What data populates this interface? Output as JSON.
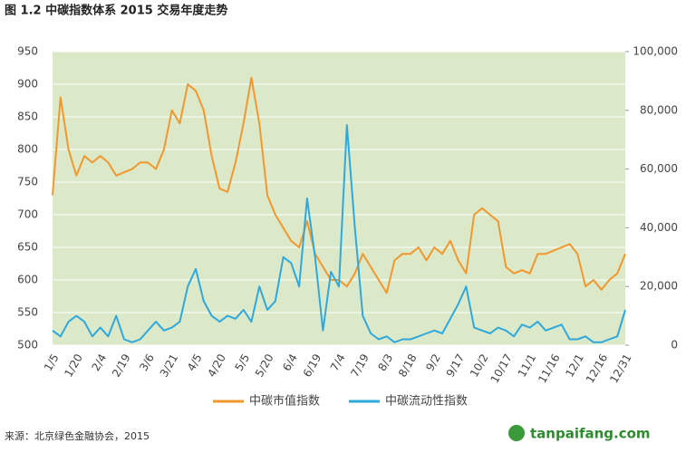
{
  "chart_data": {
    "type": "line",
    "title": "图 1.2 中碳指数体系 2015 交易年度走势",
    "source": "来源：北京绿色金融协会，2015",
    "watermark": "tanpaifang.com",
    "categories": [
      "1/5",
      null,
      null,
      "1/20",
      null,
      null,
      "2/4",
      null,
      null,
      "2/19",
      null,
      null,
      "3/6",
      null,
      null,
      "3/21",
      null,
      null,
      "4/5",
      null,
      null,
      "4/20",
      null,
      null,
      "5/5",
      null,
      null,
      "5/20",
      null,
      null,
      "6/4",
      null,
      null,
      "6/19",
      null,
      null,
      "7/4",
      null,
      null,
      "7/19",
      null,
      null,
      "8/3",
      null,
      null,
      "8/18",
      null,
      null,
      "9/2",
      null,
      null,
      "9/17",
      null,
      null,
      "10/2",
      null,
      null,
      "10/17",
      null,
      null,
      "11/1",
      null,
      null,
      "11/16",
      null,
      null,
      "12/1",
      null,
      null,
      "12/16",
      null,
      null,
      "12/31"
    ],
    "series": [
      {
        "name": "中碳市值指数",
        "color": "#f0982f",
        "axis": "y",
        "values": [
          730,
          880,
          800,
          760,
          790,
          780,
          790,
          780,
          760,
          765,
          770,
          780,
          780,
          770,
          800,
          860,
          840,
          900,
          890,
          860,
          790,
          740,
          735,
          780,
          840,
          910,
          840,
          730,
          700,
          680,
          660,
          650,
          690,
          640,
          620,
          600,
          600,
          590,
          610,
          640,
          620,
          600,
          580,
          630,
          640,
          640,
          650,
          630,
          650,
          640,
          660,
          630,
          610,
          700,
          710,
          700,
          690,
          620,
          610,
          615,
          610,
          640,
          640,
          645,
          650,
          655,
          640,
          590,
          600,
          585,
          600,
          610,
          640
        ]
      },
      {
        "name": "中碳流动性指数",
        "color": "#2fa8dc",
        "axis": "y2",
        "values": [
          5000,
          3000,
          8000,
          10000,
          8000,
          3000,
          6000,
          3000,
          10000,
          2000,
          1000,
          2000,
          5000,
          8000,
          5000,
          6000,
          8000,
          20000,
          26000,
          15000,
          10000,
          8000,
          10000,
          9000,
          12000,
          8000,
          20000,
          12000,
          15000,
          30000,
          28000,
          20000,
          50000,
          30000,
          5000,
          25000,
          20000,
          75000,
          40000,
          10000,
          4000,
          2000,
          3000,
          1000,
          2000,
          2000,
          3000,
          4000,
          5000,
          4000,
          9000,
          14000,
          20000,
          6000,
          5000,
          4000,
          6000,
          5000,
          3000,
          7000,
          6000,
          8000,
          5000,
          6000,
          7000,
          2000,
          2000,
          3000,
          1000,
          1000,
          2000,
          3000,
          12000
        ]
      }
    ],
    "ylim": [
      500,
      950
    ],
    "yticks": [
      500,
      550,
      600,
      650,
      700,
      750,
      800,
      850,
      900,
      950
    ],
    "y2lim": [
      0,
      100000
    ],
    "y2ticks": [
      0,
      {
        "value": 20000,
        "label": "20,000"
      },
      {
        "value": 40000,
        "label": "40,000"
      },
      {
        "value": 60000,
        "label": "60,000"
      },
      {
        "value": 80000,
        "label": "80,000"
      },
      {
        "value": 100000,
        "label": "100,000"
      }
    ],
    "grid": true,
    "background": "#dce9c8",
    "legend": "bottom"
  }
}
